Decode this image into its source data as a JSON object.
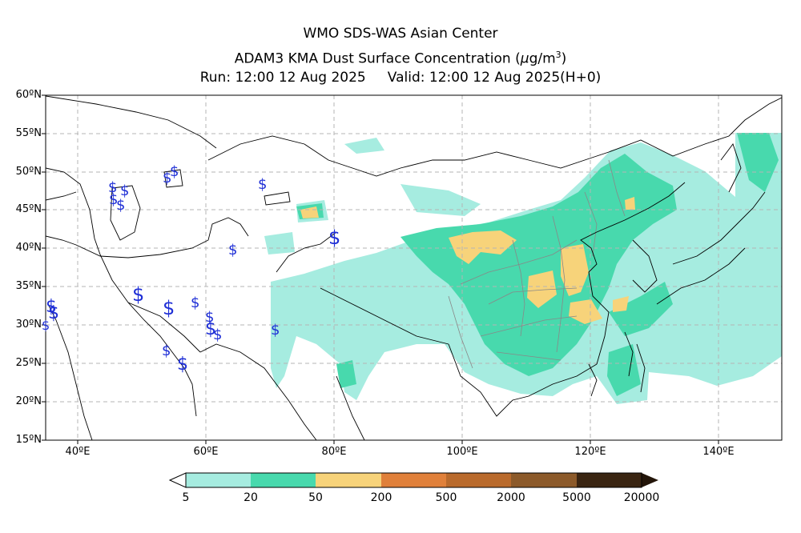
{
  "header": {
    "line1": "WMO SDS-WAS Asian Center",
    "line2_prefix": "ADAM3 KMA Dust Surface Concentration (",
    "line2_unit_mu": "μ",
    "line2_unit_rest": "g/m",
    "line2_unit_exp": "3",
    "line2_suffix": ")",
    "line3_run": "Run: 12:00 12 Aug 2025",
    "line3_valid": "Valid: 12:00 12 Aug 2025(H+0)"
  },
  "map": {
    "lon_range": [
      35,
      150
    ],
    "lat_range": [
      15,
      60
    ],
    "lat_ticks": [
      "60ºN",
      "55ºN",
      "50ºN",
      "45ºN",
      "40ºN",
      "35ºN",
      "30ºN",
      "25ºN",
      "20ºN",
      "15ºN"
    ],
    "lon_ticks": [
      "40ºE",
      "60ºE",
      "80ºE",
      "100ºE",
      "120ºE",
      "140ºE"
    ],
    "grid": true,
    "weather_symbol": "$"
  },
  "colorbar": {
    "labels": [
      "5",
      "20",
      "50",
      "200",
      "500",
      "2000",
      "5000",
      "20000"
    ],
    "colors": [
      "#a6ece0",
      "#48d9ad",
      "#f7d37a",
      "#e0803a",
      "#b96a2c",
      "#8c5a2a",
      "#6b4420",
      "#3a2512"
    ],
    "under_color": "#ffffff",
    "over_color": "#231509"
  },
  "colors": {
    "level1": "#a6ece0",
    "level2": "#48d9ad",
    "level3": "#f7d37a",
    "coast": "#000000",
    "province": "#888888",
    "symbol": "#1f2fd6"
  }
}
